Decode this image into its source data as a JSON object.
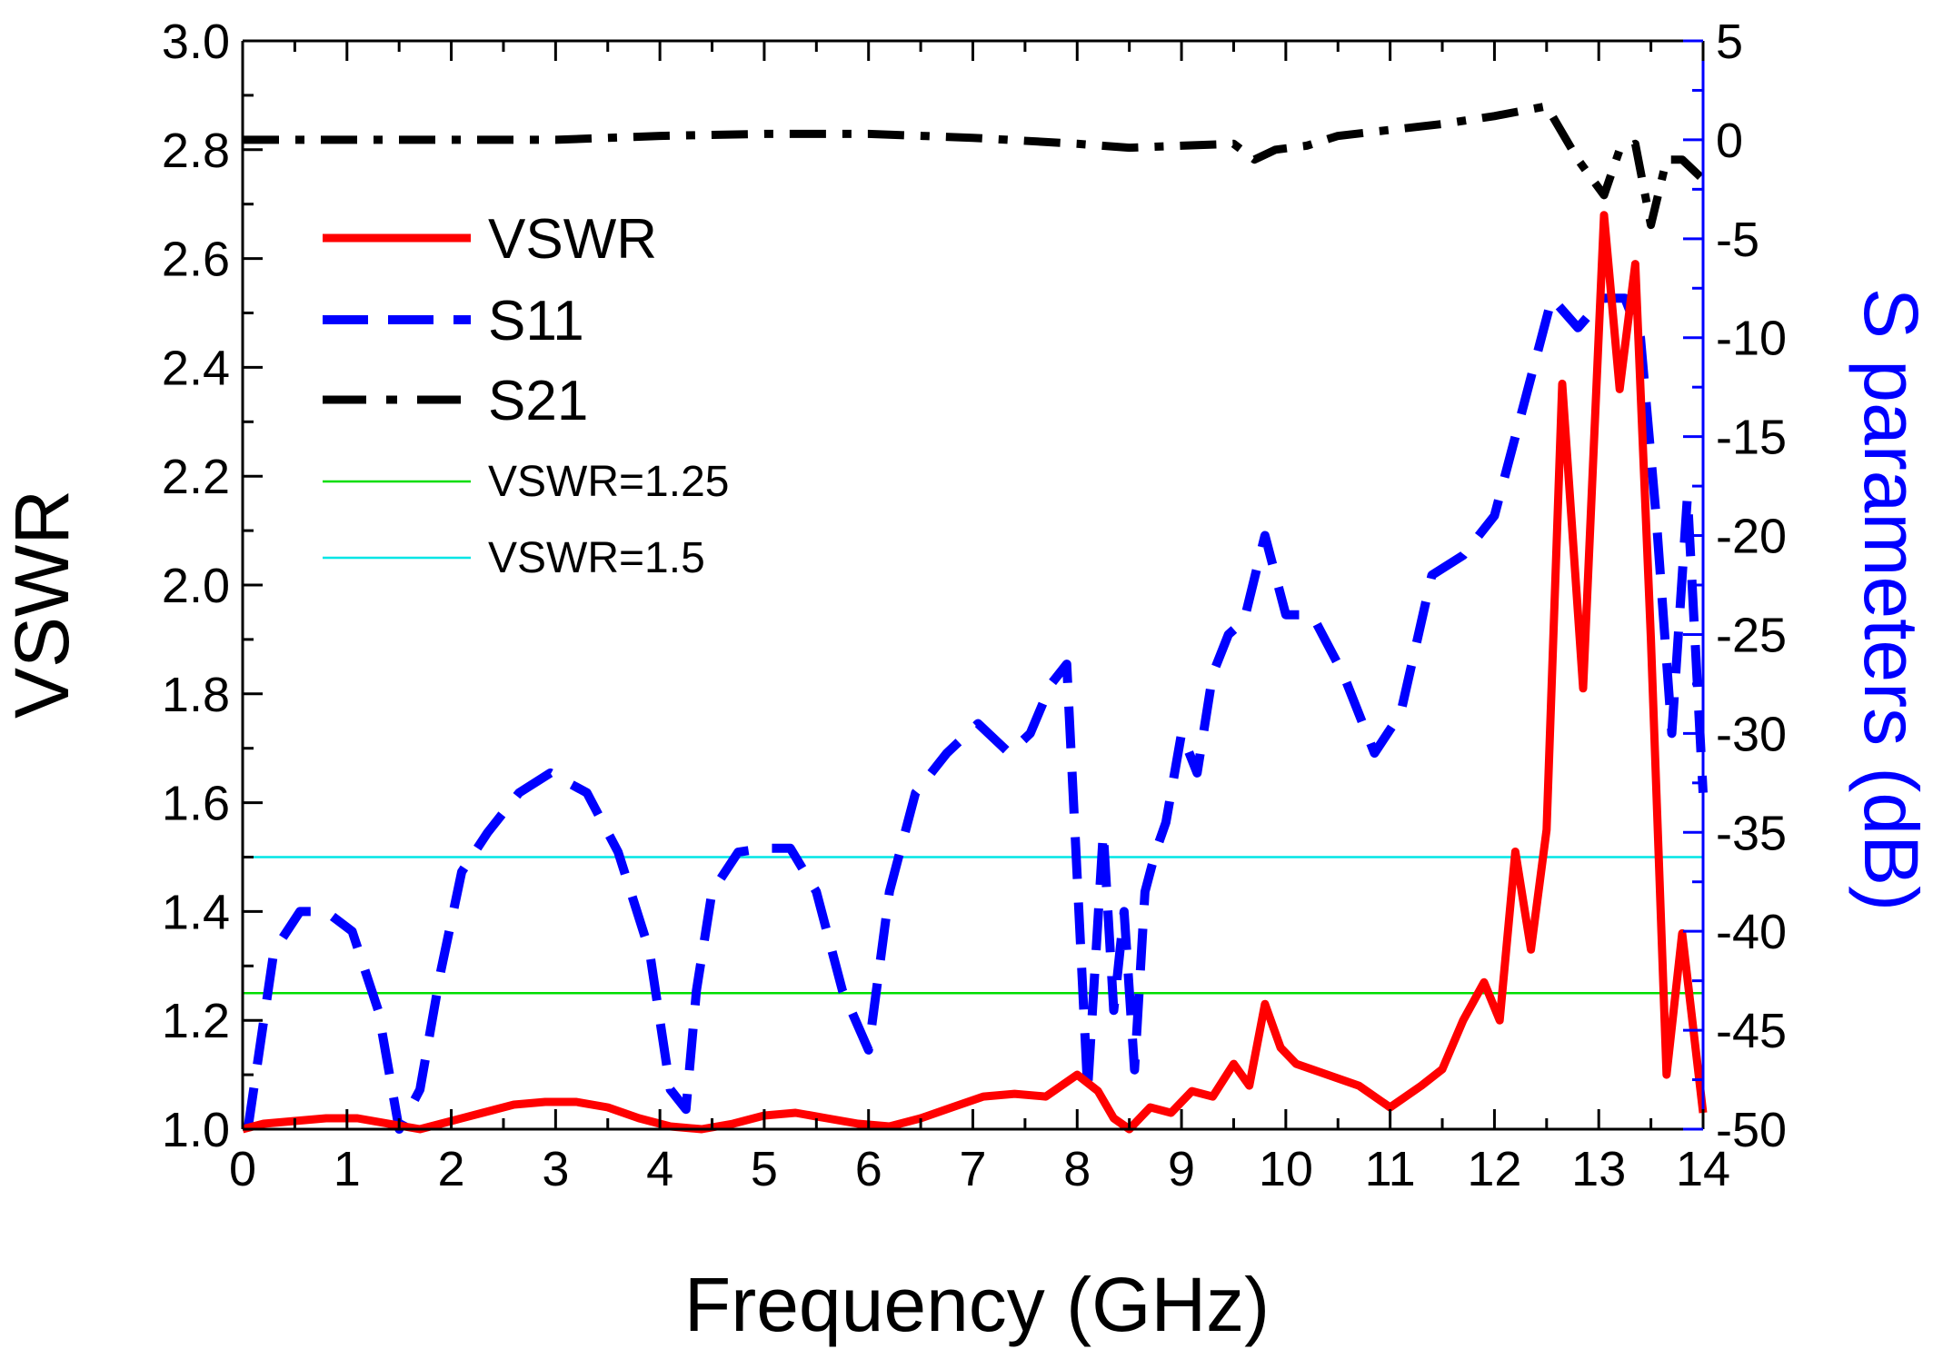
{
  "chart_data": {
    "type": "line",
    "xlabel": "Frequency (GHz)",
    "ylabel": "VSWR",
    "y2label": "S parameters (dB)",
    "xlim": [
      0,
      14
    ],
    "ylim": [
      1.0,
      3.0
    ],
    "y2lim": [
      -50,
      5
    ],
    "x_ticks": [
      "0",
      "1",
      "2",
      "3",
      "4",
      "5",
      "6",
      "7",
      "8",
      "9",
      "10",
      "11",
      "12",
      "13",
      "14"
    ],
    "y_ticks": [
      "1.0",
      "1.2",
      "1.4",
      "1.6",
      "1.8",
      "2.0",
      "2.2",
      "2.4",
      "2.6",
      "2.8",
      "3.0"
    ],
    "y2_ticks": [
      "-50",
      "-45",
      "-40",
      "-35",
      "-30",
      "-25",
      "-20",
      "-15",
      "-10",
      "-5",
      "0",
      "5"
    ],
    "legend_position": "upper-left",
    "series": [
      {
        "name": "VSWR",
        "axis": "left",
        "color": "#ff0000",
        "style": "solid",
        "x": [
          0,
          0.2,
          0.5,
          0.8,
          1.1,
          1.4,
          1.7,
          2.0,
          2.3,
          2.6,
          2.9,
          3.2,
          3.5,
          3.8,
          4.1,
          4.4,
          4.7,
          5.0,
          5.3,
          5.6,
          5.9,
          6.2,
          6.5,
          6.8,
          7.1,
          7.4,
          7.7,
          8.0,
          8.2,
          8.35,
          8.5,
          8.7,
          8.9,
          9.1,
          9.3,
          9.5,
          9.65,
          9.8,
          9.95,
          10.1,
          10.4,
          10.7,
          11.0,
          11.3,
          11.5,
          11.7,
          11.9,
          12.05,
          12.2,
          12.35,
          12.5,
          12.65,
          12.85,
          13.05,
          13.2,
          13.35,
          13.5,
          13.65,
          13.8,
          14.0
        ],
        "values": [
          1.0,
          1.01,
          1.015,
          1.02,
          1.02,
          1.01,
          1.0,
          1.015,
          1.03,
          1.045,
          1.05,
          1.05,
          1.04,
          1.02,
          1.005,
          1.0,
          1.01,
          1.025,
          1.03,
          1.02,
          1.01,
          1.005,
          1.02,
          1.04,
          1.06,
          1.065,
          1.06,
          1.1,
          1.07,
          1.02,
          1.0,
          1.04,
          1.03,
          1.07,
          1.06,
          1.12,
          1.08,
          1.23,
          1.15,
          1.12,
          1.1,
          1.08,
          1.04,
          1.08,
          1.11,
          1.2,
          1.27,
          1.2,
          1.51,
          1.33,
          1.55,
          2.37,
          1.81,
          2.68,
          2.36,
          2.59,
          1.9,
          1.1,
          1.36,
          1.03
        ]
      },
      {
        "name": "S11",
        "axis": "right",
        "color": "#0000ff",
        "style": "dash",
        "x": [
          0.05,
          0.3,
          0.55,
          0.8,
          1.05,
          1.3,
          1.5,
          1.7,
          1.9,
          2.1,
          2.35,
          2.65,
          2.95,
          3.3,
          3.6,
          3.9,
          4.1,
          4.25,
          4.35,
          4.5,
          4.75,
          5.0,
          5.25,
          5.5,
          5.75,
          6.0,
          6.2,
          6.45,
          6.75,
          7.05,
          7.35,
          7.55,
          7.75,
          7.9,
          8.1,
          8.25,
          8.35,
          8.45,
          8.55,
          8.65,
          8.75,
          8.85,
          9.0,
          9.15,
          9.3,
          9.45,
          9.6,
          9.8,
          10.0,
          10.25,
          10.55,
          10.85,
          11.1,
          11.4,
          11.7,
          12.0,
          12.3,
          12.55,
          12.8,
          13.05,
          13.25,
          13.4,
          13.55,
          13.7,
          13.85,
          14.0
        ],
        "values": [
          -50,
          -41,
          -39,
          -39,
          -40,
          -44,
          -50,
          -48,
          -42,
          -37,
          -35,
          -33,
          -32,
          -33,
          -36,
          -41,
          -48,
          -49,
          -43,
          -38,
          -36,
          -35.8,
          -35.8,
          -38,
          -43,
          -46,
          -38,
          -33,
          -31,
          -29.5,
          -31,
          -30,
          -27.5,
          -26.5,
          -48,
          -35,
          -44,
          -39,
          -47,
          -38,
          -36,
          -34.5,
          -30,
          -32,
          -27,
          -25,
          -24.3,
          -20,
          -24,
          -24,
          -27,
          -31,
          -29,
          -22,
          -21,
          -19,
          -13,
          -8,
          -9.5,
          -8,
          -8,
          -10,
          -19,
          -30,
          -18,
          -33
        ]
      },
      {
        "name": "S21",
        "axis": "right",
        "color": "#000000",
        "style": "dash-dot",
        "x": [
          0,
          1,
          2,
          3,
          4,
          5,
          6,
          7,
          8,
          8.5,
          9,
          9.5,
          9.7,
          9.9,
          10.2,
          10.5,
          11,
          11.5,
          12,
          12.5,
          12.8,
          13.05,
          13.2,
          13.35,
          13.5,
          13.65,
          13.8,
          14.0
        ],
        "values": [
          0,
          0,
          0,
          0,
          0.2,
          0.3,
          0.3,
          0.1,
          -0.2,
          -0.4,
          -0.3,
          -0.2,
          -1.0,
          -0.5,
          -0.3,
          0.2,
          0.5,
          0.8,
          1.2,
          1.7,
          -1.0,
          -2.8,
          -0.5,
          -0.2,
          -4.3,
          -1.0,
          -1.0,
          -2.0
        ]
      },
      {
        "name": "VSWR=1.25",
        "axis": "left",
        "color": "#00dd00",
        "style": "thin",
        "x": [
          0,
          14
        ],
        "values": [
          1.25,
          1.25
        ]
      },
      {
        "name": "VSWR=1.5",
        "axis": "left",
        "color": "#00e5e5",
        "style": "thin",
        "x": [
          0,
          14
        ],
        "values": [
          1.5,
          1.5
        ]
      }
    ]
  }
}
